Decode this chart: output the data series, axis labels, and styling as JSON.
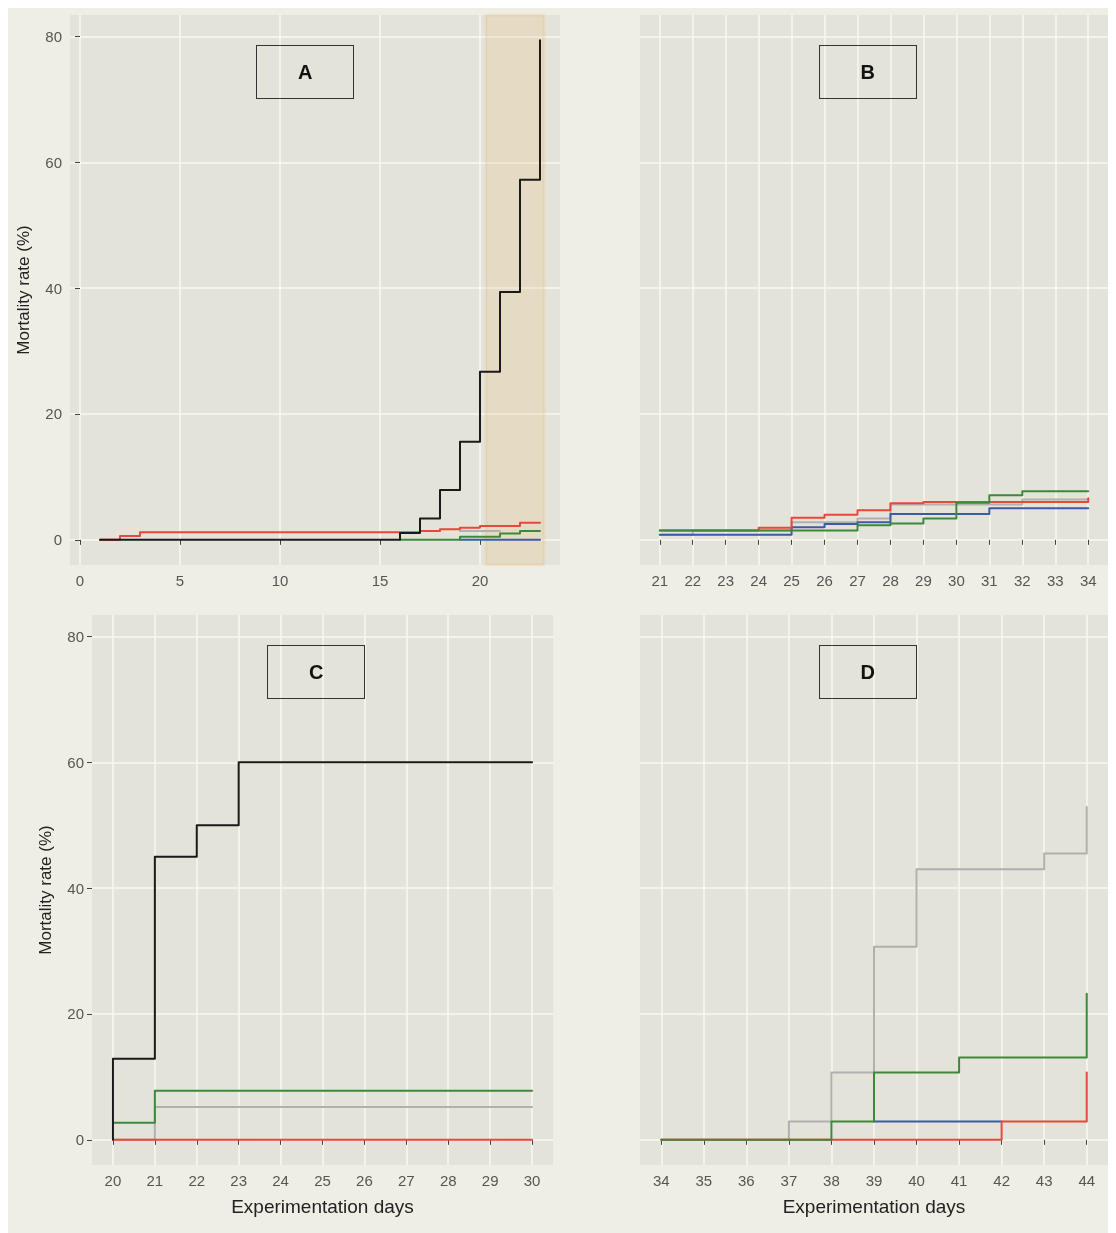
{
  "chart_data": [
    {
      "type": "step",
      "annotations": [
        "A"
      ],
      "ylabel": "Mortality rate (%)",
      "xlim": [
        -0.5,
        24
      ],
      "xticks": [
        0,
        5,
        10,
        15,
        20
      ],
      "ylim": [
        -4,
        83.4
      ],
      "yticks": [
        0,
        20,
        40,
        60,
        80
      ],
      "grid": true,
      "bands": [
        {
          "axis": "x",
          "from": 20.3,
          "to": 23.2,
          "color": "#f0a030"
        }
      ],
      "series": [
        {
          "color": "#b0b0b0",
          "x": [
            19,
            21
          ],
          "values": [
            1.4,
            1.4
          ]
        },
        {
          "color": "#3d5aa8",
          "x": [
            19,
            23
          ],
          "values": [
            0,
            0
          ]
        },
        {
          "color": "#3a8a3a",
          "x": [
            16,
            19,
            21,
            22,
            23
          ],
          "values": [
            0,
            0.5,
            1.0,
            1.4,
            1.4
          ]
        },
        {
          "color": "#e8473c",
          "x": [
            1,
            2,
            3,
            17,
            18,
            19,
            20,
            22,
            23
          ],
          "values": [
            0,
            0.6,
            1.2,
            1.4,
            1.7,
            1.9,
            2.2,
            2.7,
            2.7
          ]
        },
        {
          "color": "#1a1a1a",
          "x": [
            1,
            16,
            17,
            18,
            19,
            20,
            21,
            22,
            23
          ],
          "values": [
            0,
            1.1,
            3.4,
            7.9,
            15.6,
            26.7,
            39.4,
            57.2,
            79.4
          ]
        }
      ]
    },
    {
      "type": "step",
      "annotations": [
        "B"
      ],
      "xlim": [
        20.4,
        34.6
      ],
      "xticks": [
        21,
        22,
        23,
        24,
        25,
        26,
        27,
        28,
        29,
        30,
        31,
        32,
        33,
        34
      ],
      "ylim": [
        -4,
        83.4
      ],
      "yticks": [
        0,
        20,
        40,
        60,
        80
      ],
      "grid": true,
      "tick_labels": "x",
      "series": [
        {
          "color": "#b0b0b0",
          "x": [
            21,
            22,
            25,
            27,
            28,
            32,
            34
          ],
          "values": [
            0.8,
            1.5,
            2.8,
            3.4,
            5.6,
            6.4,
            6.4
          ]
        },
        {
          "color": "#3d5aa8",
          "x": [
            21,
            25,
            26,
            27,
            28,
            31,
            34
          ],
          "values": [
            0.8,
            2.0,
            2.5,
            2.8,
            4.1,
            5.0,
            5.0
          ]
        },
        {
          "color": "#e8473c",
          "x": [
            21,
            24,
            25,
            26,
            27,
            28,
            29,
            34
          ],
          "values": [
            1.5,
            1.9,
            3.5,
            4.0,
            4.7,
            5.8,
            6.0,
            6.6
          ]
        },
        {
          "color": "#3a8a3a",
          "x": [
            21,
            27,
            28,
            29,
            30,
            31,
            32,
            34
          ],
          "values": [
            1.5,
            2.3,
            2.6,
            3.4,
            5.9,
            7.1,
            7.7,
            7.7
          ]
        }
      ]
    },
    {
      "type": "step",
      "annotations": [
        "C"
      ],
      "ylabel": "Mortality rate (%)",
      "xlabel": "Experimentation days",
      "xlim": [
        19.5,
        30.5
      ],
      "xticks": [
        20,
        21,
        22,
        23,
        24,
        25,
        26,
        27,
        28,
        29,
        30
      ],
      "ylim": [
        -4,
        83.4
      ],
      "yticks": [
        0,
        20,
        40,
        60,
        80
      ],
      "grid": true,
      "series": [
        {
          "color": "#b0b0b0",
          "x": [
            20,
            21,
            30
          ],
          "values": [
            0,
            5.2,
            5.2
          ]
        },
        {
          "color": "#3a8a3a",
          "x": [
            20,
            21,
            30
          ],
          "values": [
            2.7,
            7.8,
            7.8
          ]
        },
        {
          "color": "#e8473c",
          "x": [
            20,
            30
          ],
          "values": [
            0,
            0
          ]
        },
        {
          "color": "#1a1a1a",
          "x": [
            20,
            20,
            21,
            22,
            23,
            30
          ],
          "values": [
            0,
            12.9,
            45,
            50,
            60,
            60
          ]
        }
      ]
    },
    {
      "type": "step",
      "annotations": [
        "D"
      ],
      "xlabel": "Experimentation days",
      "xlim": [
        33.5,
        44.5
      ],
      "xticks": [
        34,
        35,
        36,
        37,
        38,
        39,
        40,
        41,
        42,
        43,
        44
      ],
      "ylim": [
        -4,
        83.4
      ],
      "yticks": [
        0,
        20,
        40,
        60,
        80
      ],
      "grid": true,
      "tick_labels": "x",
      "series": [
        {
          "color": "#b0b0b0",
          "x": [
            34,
            37,
            38,
            39,
            40,
            43,
            44
          ],
          "values": [
            0,
            2.9,
            10.7,
            30.7,
            43.0,
            45.5,
            52.9
          ]
        },
        {
          "color": "#3d5aa8",
          "x": [
            39,
            42
          ],
          "values": [
            2.9,
            2.9
          ]
        },
        {
          "color": "#e8473c",
          "x": [
            34,
            42,
            44
          ],
          "values": [
            0,
            2.9,
            10.7
          ]
        },
        {
          "color": "#3a8a3a",
          "x": [
            34,
            38,
            39,
            41,
            44
          ],
          "values": [
            0,
            2.9,
            10.7,
            13.1,
            23.2
          ]
        }
      ]
    }
  ]
}
